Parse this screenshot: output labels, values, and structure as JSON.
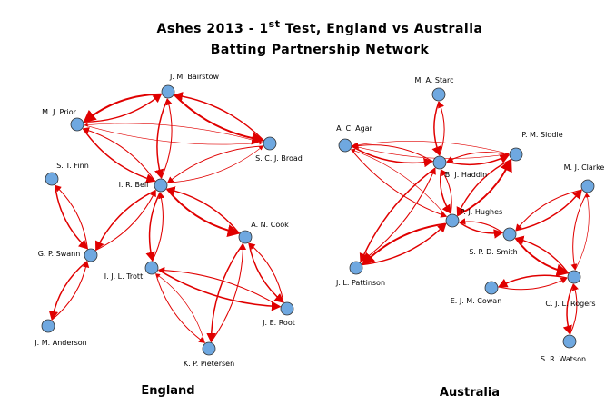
{
  "header": {
    "title": {
      "prefix": "Ashes 2013 - 1",
      "superscript": "st",
      "suffix": " Test, England vs Australia"
    },
    "subtitle": "Batting Partnership Network"
  },
  "teams": [
    {
      "name": "England",
      "players": [
        "J. M. Bairstow",
        "M. J. Prior",
        "S. C. J. Broad",
        "S. T. Finn",
        "I. R. Bell",
        "A. N. Cook",
        "G. P. Swann",
        "I. J. L. Trott",
        "J. E. Root",
        "J. M. Anderson",
        "K. P. Pietersen"
      ]
    },
    {
      "name": "Australia",
      "players": [
        "M. A. Starc",
        "A. C. Agar",
        "P. M. Siddle",
        "B. J. Haddin",
        "M. J. Clarke",
        "P. J. Hughes",
        "S. P. D. Smith",
        "J. L. Pattinson",
        "E. J. M. Cowan",
        "C. J. L. Rogers",
        "S. R. Watson"
      ]
    }
  ]
}
